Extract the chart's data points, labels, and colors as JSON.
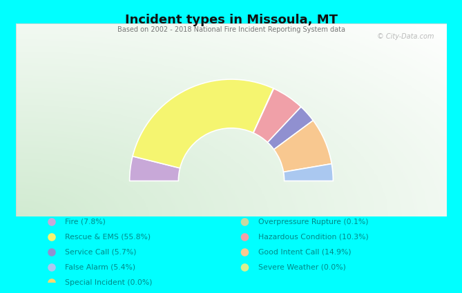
{
  "title": "Incident types in Missoula, MT",
  "subtitle": "Based on 2002 - 2018 National Fire Incident Reporting System data",
  "watermark": "© City-Data.com",
  "background_color": "#00FFFF",
  "chart_bg_color": "#ddeedd",
  "segments_ordered": [
    {
      "label": "Fire (7.8%)",
      "value": 7.8,
      "color": "#c8a8d8"
    },
    {
      "label": "Rescue & EMS (55.8%)",
      "value": 55.8,
      "color": "#f5f570"
    },
    {
      "label": "Overpressure Rupture (0.1%)",
      "value": 0.1,
      "color": "#c8d8a0"
    },
    {
      "label": "Hazardous Condition (10.3%)",
      "value": 10.3,
      "color": "#f0a0a8"
    },
    {
      "label": "Service Call (5.7%)",
      "value": 5.7,
      "color": "#9090d0"
    },
    {
      "label": "Good Intent Call (14.9%)",
      "value": 14.9,
      "color": "#f8c890"
    },
    {
      "label": "False Alarm (5.4%)",
      "value": 5.4,
      "color": "#aac8f0"
    },
    {
      "label": "Special Incident (0.0%)",
      "value": 0.001,
      "color": "#f8d870"
    },
    {
      "label": "Severe Weather (0.0%)",
      "value": 0.001,
      "color": "#d8f090"
    }
  ],
  "legend_left": [
    {
      "label": "Fire (7.8%)",
      "color": "#c8a8d8"
    },
    {
      "label": "Rescue & EMS (55.8%)",
      "color": "#f5f570"
    },
    {
      "label": "Service Call (5.7%)",
      "color": "#9090d0"
    },
    {
      "label": "False Alarm (5.4%)",
      "color": "#aac8f0"
    },
    {
      "label": "Special Incident (0.0%)",
      "color": "#f8d870"
    }
  ],
  "legend_right": [
    {
      "label": "Overpressure Rupture (0.1%)",
      "color": "#c8d8a0"
    },
    {
      "label": "Hazardous Condition (10.3%)",
      "color": "#f0a0a8"
    },
    {
      "label": "Good Intent Call (14.9%)",
      "color": "#f8c890"
    },
    {
      "label": "Severe Weather (0.0%)",
      "color": "#d8f090"
    }
  ],
  "legend_text_color": "#008888",
  "title_color": "#111111",
  "subtitle_color": "#777777",
  "outer_r": 1.0,
  "inner_r": 0.52
}
